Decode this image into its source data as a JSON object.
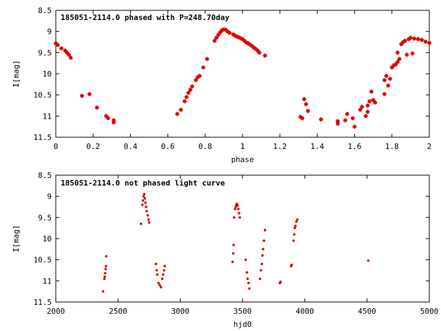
{
  "chart_data": [
    {
      "type": "scatter",
      "title": "185051-2114.0 phased with P=248.70day",
      "xlabel": "phase",
      "ylabel": "I[mag]",
      "xlim": [
        0,
        2
      ],
      "ylim": [
        8.5,
        11.5
      ],
      "y_inverted": true,
      "xticks": [
        "0",
        "0.2",
        "0.4",
        "0.6",
        "0.8",
        "1",
        "1.2",
        "1.4",
        "1.6",
        "1.8",
        "2"
      ],
      "yticks": [
        "8.5",
        "9",
        "9.5",
        "10",
        "10.5",
        "11",
        "11.5"
      ],
      "grid": false,
      "marker": "star",
      "color": "#e00000",
      "points": [
        [
          0.0,
          9.28
        ],
        [
          0.01,
          9.32
        ],
        [
          0.03,
          9.4
        ],
        [
          0.05,
          9.45
        ],
        [
          0.06,
          9.5
        ],
        [
          0.07,
          9.55
        ],
        [
          0.08,
          9.62
        ],
        [
          0.14,
          10.52
        ],
        [
          0.18,
          10.48
        ],
        [
          0.22,
          10.8
        ],
        [
          0.27,
          11.0
        ],
        [
          0.28,
          11.05
        ],
        [
          0.31,
          11.15
        ],
        [
          0.31,
          11.1
        ],
        [
          0.65,
          10.95
        ],
        [
          0.67,
          10.85
        ],
        [
          0.69,
          10.65
        ],
        [
          0.7,
          10.55
        ],
        [
          0.71,
          10.45
        ],
        [
          0.72,
          10.38
        ],
        [
          0.73,
          10.3
        ],
        [
          0.75,
          10.15
        ],
        [
          0.76,
          10.08
        ],
        [
          0.77,
          10.05
        ],
        [
          0.79,
          9.85
        ],
        [
          0.81,
          9.65
        ],
        [
          0.85,
          9.22
        ],
        [
          0.86,
          9.15
        ],
        [
          0.87,
          9.08
        ],
        [
          0.88,
          9.02
        ],
        [
          0.89,
          8.97
        ],
        [
          0.9,
          8.95
        ],
        [
          0.91,
          8.96
        ],
        [
          0.92,
          9.0
        ],
        [
          0.93,
          9.03
        ],
        [
          0.95,
          9.07
        ],
        [
          0.96,
          9.1
        ],
        [
          0.97,
          9.12
        ],
        [
          0.98,
          9.14
        ],
        [
          0.99,
          9.16
        ],
        [
          1.0,
          9.18
        ],
        [
          1.01,
          9.22
        ],
        [
          1.02,
          9.26
        ],
        [
          1.03,
          9.28
        ],
        [
          1.04,
          9.31
        ],
        [
          1.05,
          9.34
        ],
        [
          1.06,
          9.38
        ],
        [
          1.07,
          9.41
        ],
        [
          1.08,
          9.45
        ],
        [
          1.09,
          9.5
        ],
        [
          1.12,
          9.57
        ],
        [
          1.31,
          11.02
        ],
        [
          1.32,
          11.05
        ],
        [
          1.33,
          10.6
        ],
        [
          1.34,
          10.72
        ],
        [
          1.35,
          10.88
        ],
        [
          1.42,
          11.08
        ],
        [
          1.51,
          11.12
        ],
        [
          1.51,
          11.18
        ],
        [
          1.55,
          11.1
        ],
        [
          1.56,
          10.95
        ],
        [
          1.59,
          11.05
        ],
        [
          1.6,
          11.25
        ],
        [
          1.63,
          10.85
        ],
        [
          1.64,
          10.78
        ],
        [
          1.66,
          11.0
        ],
        [
          1.67,
          10.9
        ],
        [
          1.67,
          10.75
        ],
        [
          1.68,
          10.65
        ],
        [
          1.69,
          10.42
        ],
        [
          1.7,
          10.62
        ],
        [
          1.71,
          10.68
        ],
        [
          1.76,
          10.48
        ],
        [
          1.76,
          10.15
        ],
        [
          1.77,
          10.05
        ],
        [
          1.78,
          10.28
        ],
        [
          1.79,
          10.12
        ],
        [
          1.8,
          9.85
        ],
        [
          1.81,
          9.8
        ],
        [
          1.82,
          9.78
        ],
        [
          1.83,
          9.72
        ],
        [
          1.83,
          9.5
        ],
        [
          1.84,
          9.65
        ],
        [
          1.85,
          9.3
        ],
        [
          1.86,
          9.25
        ],
        [
          1.87,
          9.22
        ],
        [
          1.88,
          9.55
        ],
        [
          1.89,
          9.18
        ],
        [
          1.9,
          9.15
        ],
        [
          1.91,
          9.52
        ],
        [
          1.92,
          9.17
        ],
        [
          1.94,
          9.18
        ],
        [
          1.96,
          9.2
        ],
        [
          1.98,
          9.24
        ],
        [
          2.0,
          9.27
        ]
      ]
    },
    {
      "type": "scatter",
      "title": "185051-2114.0 not phased light curve",
      "xlabel": "hjd0",
      "ylabel": "I[mag]",
      "xlim": [
        2000,
        5000
      ],
      "ylim": [
        8.5,
        11.5
      ],
      "y_inverted": true,
      "xticks": [
        "2000",
        "2500",
        "3000",
        "3500",
        "4000",
        "4500",
        "5000"
      ],
      "yticks": [
        "8.5",
        "9",
        "9.5",
        "10",
        "10.5",
        "11",
        "11.5"
      ],
      "grid": false,
      "marker": "dot",
      "color": "#e00000",
      "points": [
        [
          2380,
          11.25
        ],
        [
          2390,
          10.95
        ],
        [
          2393,
          10.9
        ],
        [
          2396,
          10.82
        ],
        [
          2400,
          10.72
        ],
        [
          2403,
          10.65
        ],
        [
          2405,
          10.42
        ],
        [
          2685,
          9.65
        ],
        [
          2695,
          9.2
        ],
        [
          2700,
          9.1
        ],
        [
          2705,
          9.0
        ],
        [
          2710,
          8.95
        ],
        [
          2715,
          9.05
        ],
        [
          2720,
          9.15
        ],
        [
          2725,
          9.25
        ],
        [
          2730,
          9.35
        ],
        [
          2738,
          9.45
        ],
        [
          2745,
          9.55
        ],
        [
          2750,
          9.62
        ],
        [
          2805,
          10.6
        ],
        [
          2810,
          10.75
        ],
        [
          2815,
          10.85
        ],
        [
          2825,
          11.05
        ],
        [
          2835,
          11.1
        ],
        [
          2845,
          11.15
        ],
        [
          2855,
          10.95
        ],
        [
          2862,
          10.85
        ],
        [
          2870,
          10.75
        ],
        [
          2875,
          10.65
        ],
        [
          3420,
          10.55
        ],
        [
          3425,
          10.35
        ],
        [
          3428,
          10.15
        ],
        [
          3432,
          9.5
        ],
        [
          3440,
          9.3
        ],
        [
          3445,
          9.25
        ],
        [
          3450,
          9.2
        ],
        [
          3455,
          9.18
        ],
        [
          3460,
          9.22
        ],
        [
          3466,
          9.3
        ],
        [
          3472,
          9.4
        ],
        [
          3478,
          9.5
        ],
        [
          3525,
          10.5
        ],
        [
          3535,
          10.8
        ],
        [
          3540,
          10.95
        ],
        [
          3548,
          11.05
        ],
        [
          3555,
          11.18
        ],
        [
          3640,
          10.95
        ],
        [
          3648,
          10.75
        ],
        [
          3655,
          10.6
        ],
        [
          3660,
          10.4
        ],
        [
          3665,
          10.25
        ],
        [
          3672,
          10.05
        ],
        [
          3680,
          9.8
        ],
        [
          3800,
          11.05
        ],
        [
          3805,
          11.02
        ],
        [
          3890,
          10.65
        ],
        [
          3895,
          10.62
        ],
        [
          3910,
          10.05
        ],
        [
          3915,
          9.9
        ],
        [
          3920,
          9.75
        ],
        [
          3925,
          9.7
        ],
        [
          3932,
          9.6
        ],
        [
          3940,
          9.55
        ],
        [
          4510,
          10.52
        ]
      ]
    }
  ]
}
